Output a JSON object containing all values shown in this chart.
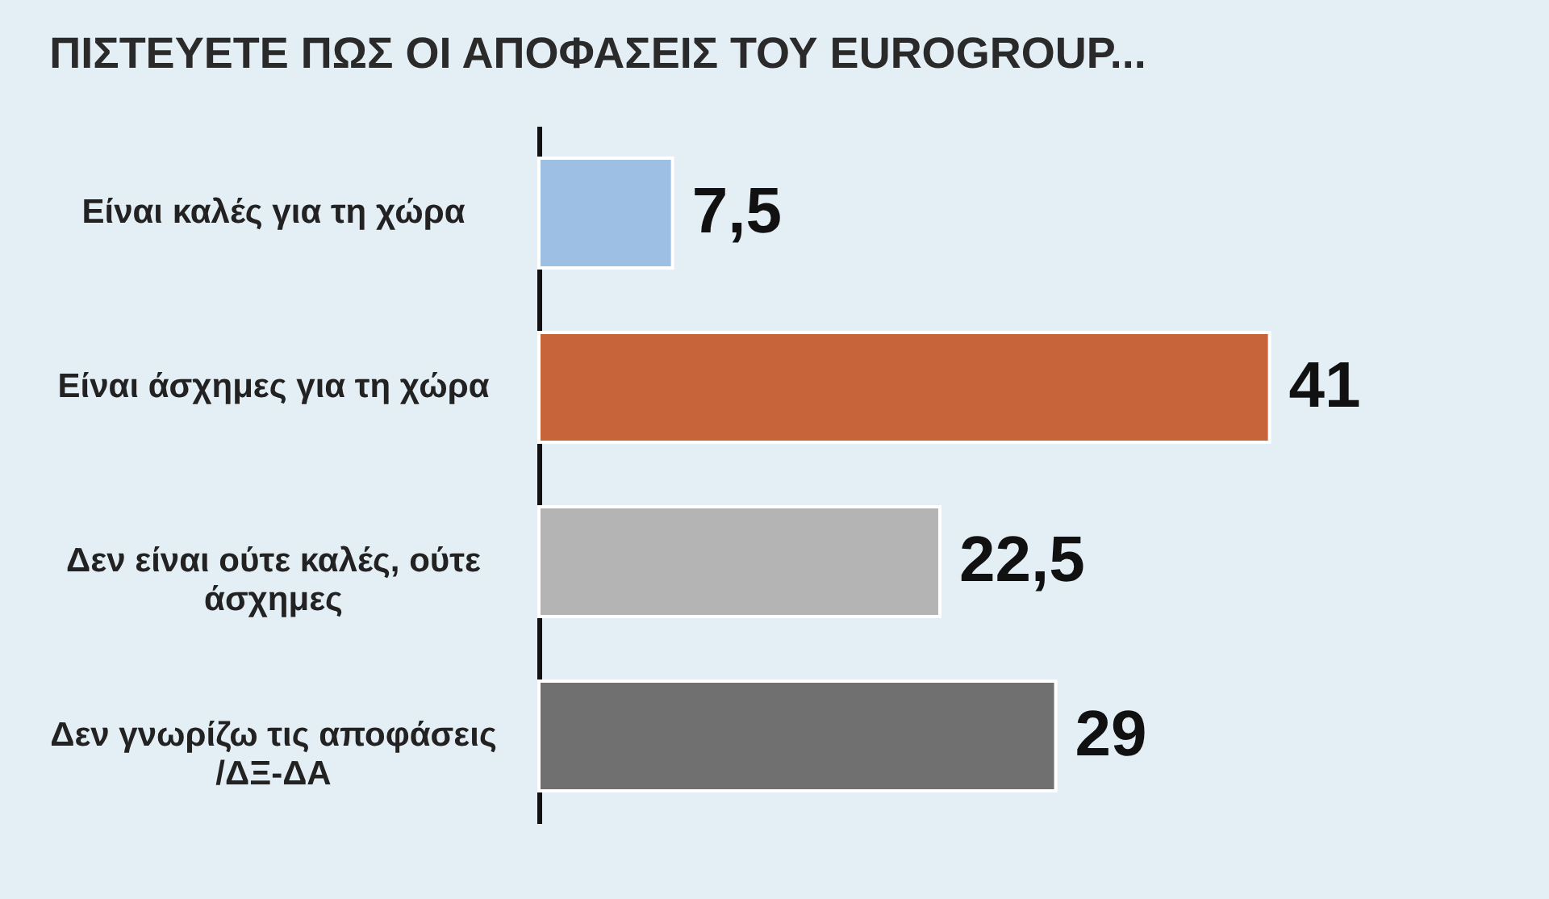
{
  "chart_data": {
    "type": "bar",
    "orientation": "horizontal",
    "title": "ΠΙΣΤΕΥΕΤΕ ΠΩΣ ΟΙ ΑΠΟΦΑΣΕΙΣ ΤΟΥ EUROGROUP...",
    "categories": [
      "Είναι καλές για τη χώρα",
      "Είναι άσχημες για τη χώρα",
      "Δεν είναι ούτε καλές, ούτε άσχημες",
      "Δεν γνωρίζω τις αποφάσεις /ΔΞ-ΔΑ"
    ],
    "values": [
      7.5,
      41,
      22.5,
      29
    ],
    "colors": [
      "#9dbfe3",
      "#c8643a",
      "#b4b4b4",
      "#707070"
    ],
    "value_labels": [
      "7,5",
      "41",
      "22,5",
      "29"
    ]
  }
}
